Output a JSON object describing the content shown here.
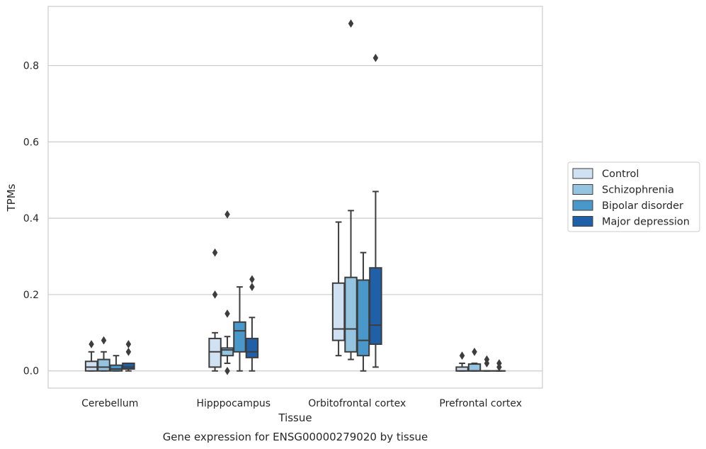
{
  "chart_data": {
    "type": "box",
    "title": "",
    "caption": "Gene expression for ENSG00000279020 by tissue",
    "xlabel": "Tissue",
    "ylabel": "TPMs",
    "ylim": [
      -0.045,
      0.955
    ],
    "yticks": [
      0.0,
      0.2,
      0.4,
      0.6,
      0.8
    ],
    "ytick_labels": [
      "0.0",
      "0.2",
      "0.4",
      "0.6",
      "0.8"
    ],
    "grid": "horizontal",
    "legend_position": "right",
    "categories": [
      "Cerebellum",
      "Hipppocampus",
      "Orbitofrontal cortex",
      "Prefrontal cortex"
    ],
    "series": [
      {
        "name": "Control",
        "color": "#d0e1f2",
        "boxes": [
          {
            "whislo": 0.0,
            "q1": 0.0,
            "med": 0.01,
            "q3": 0.025,
            "whishi": 0.05,
            "fliers": [
              0.07
            ]
          },
          {
            "whislo": 0.0,
            "q1": 0.01,
            "med": 0.05,
            "q3": 0.085,
            "whishi": 0.1,
            "fliers": [
              0.2,
              0.31
            ]
          },
          {
            "whislo": 0.04,
            "q1": 0.08,
            "med": 0.11,
            "q3": 0.23,
            "whishi": 0.39,
            "fliers": []
          },
          {
            "whislo": 0.0,
            "q1": 0.0,
            "med": 0.0,
            "q3": 0.01,
            "whishi": 0.02,
            "fliers": [
              0.04
            ]
          }
        ]
      },
      {
        "name": "Schizophrenia",
        "color": "#94c4df",
        "boxes": [
          {
            "whislo": 0.0,
            "q1": 0.0,
            "med": 0.01,
            "q3": 0.03,
            "whishi": 0.05,
            "fliers": [
              0.08
            ]
          },
          {
            "whislo": 0.02,
            "q1": 0.04,
            "med": 0.055,
            "q3": 0.06,
            "whishi": 0.09,
            "fliers": [
              0.15,
              0.41,
              0.0
            ]
          },
          {
            "whislo": 0.03,
            "q1": 0.05,
            "med": 0.11,
            "q3": 0.245,
            "whishi": 0.42,
            "fliers": [
              0.91
            ]
          },
          {
            "whislo": 0.0,
            "q1": 0.0,
            "med": 0.0,
            "q3": 0.018,
            "whishi": 0.02,
            "fliers": [
              0.05
            ]
          }
        ]
      },
      {
        "name": "Bipolar disorder",
        "color": "#4a98c9",
        "boxes": [
          {
            "whislo": 0.0,
            "q1": 0.0,
            "med": 0.005,
            "q3": 0.015,
            "whishi": 0.04,
            "fliers": []
          },
          {
            "whislo": 0.0,
            "q1": 0.05,
            "med": 0.105,
            "q3": 0.128,
            "whishi": 0.22,
            "fliers": []
          },
          {
            "whislo": 0.0,
            "q1": 0.04,
            "med": 0.08,
            "q3": 0.238,
            "whishi": 0.31,
            "fliers": []
          },
          {
            "whislo": 0.0,
            "q1": 0.0,
            "med": 0.0,
            "q3": 0.0,
            "whishi": 0.0,
            "fliers": [
              0.03,
              0.02
            ]
          }
        ]
      },
      {
        "name": "Major depression",
        "color": "#2060a8",
        "boxes": [
          {
            "whislo": 0.0,
            "q1": 0.005,
            "med": 0.01,
            "q3": 0.02,
            "whishi": 0.02,
            "fliers": [
              0.07,
              0.05
            ]
          },
          {
            "whislo": 0.0,
            "q1": 0.035,
            "med": 0.05,
            "q3": 0.085,
            "whishi": 0.14,
            "fliers": [
              0.24,
              0.22
            ]
          },
          {
            "whislo": 0.01,
            "q1": 0.07,
            "med": 0.12,
            "q3": 0.27,
            "whishi": 0.47,
            "fliers": [
              0.82
            ]
          },
          {
            "whislo": 0.0,
            "q1": 0.0,
            "med": 0.0,
            "q3": 0.0,
            "whishi": 0.0,
            "fliers": [
              0.02,
              0.01
            ]
          }
        ]
      }
    ]
  }
}
